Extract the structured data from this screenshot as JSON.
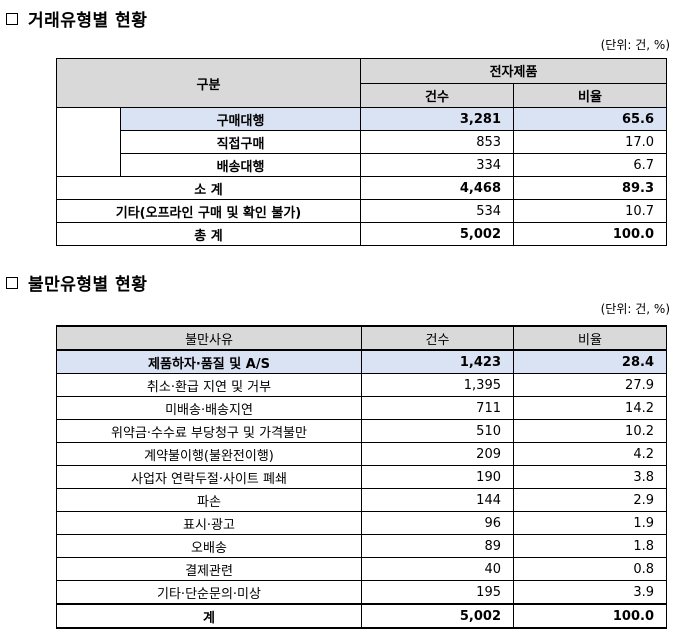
{
  "section1": {
    "title": "거래유형별 현황",
    "unit": "(단위: 건, %)",
    "header_category": "구분",
    "header_group": "전자제품",
    "header_count": "건수",
    "header_ratio": "비율",
    "rows": [
      {
        "label": "구매대행",
        "count": "3,281",
        "ratio": "65.6"
      },
      {
        "label": "직접구매",
        "count": "853",
        "ratio": "17.0"
      },
      {
        "label": "배송대행",
        "count": "334",
        "ratio": "6.7"
      }
    ],
    "subtotal": {
      "label": "소 계",
      "count": "4,468",
      "ratio": "89.3"
    },
    "other": {
      "label": "기타(오프라인 구매 및 확인 불가)",
      "count": "534",
      "ratio": "10.7"
    },
    "total": {
      "label": "총 계",
      "count": "5,002",
      "ratio": "100.0"
    }
  },
  "section2": {
    "title": "불만유형별 현황",
    "unit": "(단위: 건, %)",
    "header_reason": "불만사유",
    "header_count": "건수",
    "header_ratio": "비율",
    "rows": [
      {
        "label": "제품하자·품질 및 A/S",
        "count": "1,423",
        "ratio": "28.4"
      },
      {
        "label": "취소·환급 지연 및 거부",
        "count": "1,395",
        "ratio": "27.9"
      },
      {
        "label": "미배송·배송지연",
        "count": "711",
        "ratio": "14.2"
      },
      {
        "label": "위약금·수수료 부당청구 및 가격불만",
        "count": "510",
        "ratio": "10.2"
      },
      {
        "label": "계약불이행(불완전이행)",
        "count": "209",
        "ratio": "4.2"
      },
      {
        "label": "사업자 연락두절·사이트 폐쇄",
        "count": "190",
        "ratio": "3.8"
      },
      {
        "label": "파손",
        "count": "144",
        "ratio": "2.9"
      },
      {
        "label": "표시·광고",
        "count": "96",
        "ratio": "1.9"
      },
      {
        "label": "오배송",
        "count": "89",
        "ratio": "1.8"
      },
      {
        "label": "결제관련",
        "count": "40",
        "ratio": "0.8"
      },
      {
        "label": "기타·단순문의·미상",
        "count": "195",
        "ratio": "3.9"
      }
    ],
    "total": {
      "label": "계",
      "count": "5,002",
      "ratio": "100.0"
    }
  }
}
